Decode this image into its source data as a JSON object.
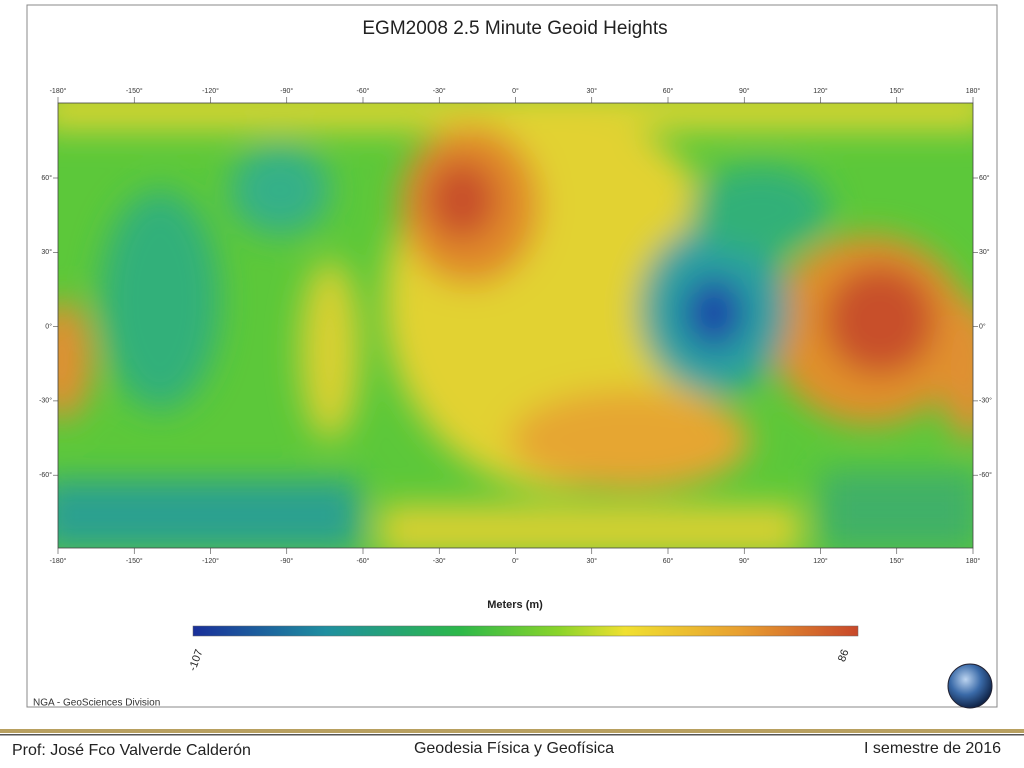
{
  "map": {
    "title": "EGM2008 2.5 Minute Geoid Heights",
    "lon_ticks": [
      "-180°",
      "-150°",
      "-120°",
      "-90°",
      "-60°",
      "-30°",
      "0°",
      "30°",
      "60°",
      "90°",
      "120°",
      "150°",
      "180°"
    ],
    "lat_ticks": [
      "60°",
      "30°",
      "0°",
      "-30°",
      "-60°"
    ],
    "colorbar": {
      "label": "Meters (m)",
      "min": -107,
      "max": 86
    },
    "credit": "NGA - GeoSciences Division"
  },
  "footer": {
    "author": "Prof: José Fco Valverde Calderón",
    "course": "Geodesia Física y Geofísica",
    "term": "I semestre de 2016"
  }
}
